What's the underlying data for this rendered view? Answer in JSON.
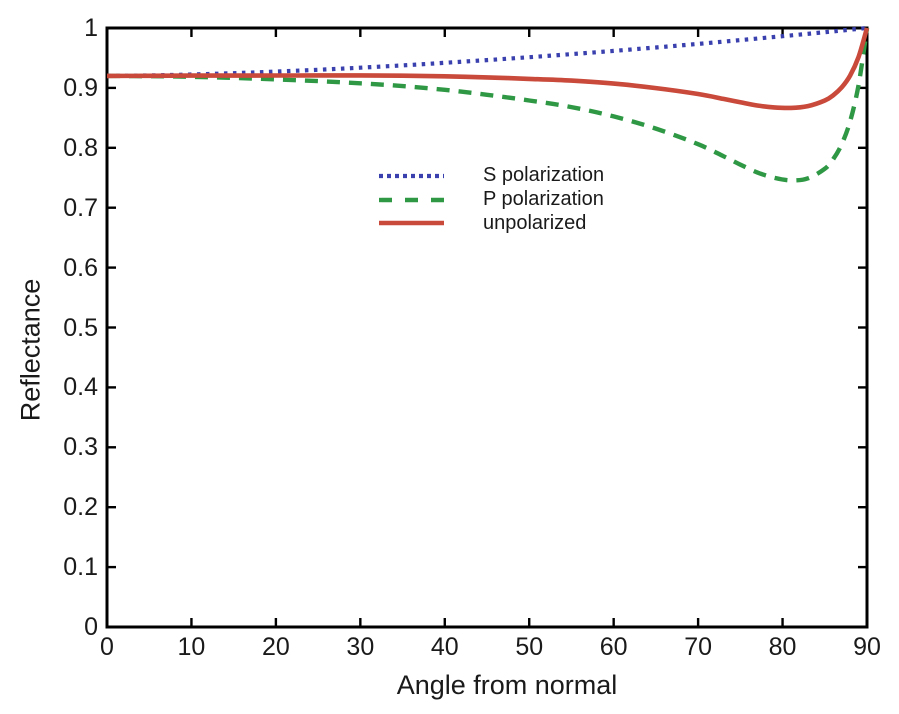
{
  "chart_data": {
    "type": "line",
    "title": "",
    "xlabel": "Angle from normal",
    "ylabel": "Reflectance",
    "xlim": [
      0,
      90
    ],
    "ylim": [
      0,
      1
    ],
    "grid": false,
    "background": "#ffffff",
    "axis_color": "#000000",
    "legend_position": "inside upper-center-left",
    "x_ticks": {
      "values": [
        0,
        10,
        20,
        30,
        40,
        50,
        60,
        70,
        80,
        90
      ],
      "labels": [
        "0",
        "10",
        "20",
        "30",
        "40",
        "50",
        "60",
        "70",
        "80",
        "90"
      ]
    },
    "y_ticks": {
      "values": [
        0,
        0.1,
        0.2,
        0.3,
        0.4,
        0.5,
        0.6,
        0.7,
        0.8,
        0.9,
        1
      ],
      "labels": [
        "0",
        "0.1",
        "0.2",
        "0.3",
        "0.4",
        "0.5",
        "0.6",
        "0.7",
        "0.8",
        "0.9",
        "1"
      ]
    },
    "series": [
      {
        "name": "S polarization",
        "style": "dotted",
        "color": "#3a41ae",
        "points": [
          [
            0,
            0.92
          ],
          [
            5,
            0.9208
          ],
          [
            10,
            0.9224
          ],
          [
            15,
            0.9246
          ],
          [
            20,
            0.9272
          ],
          [
            25,
            0.9303
          ],
          [
            30,
            0.9338
          ],
          [
            35,
            0.9376
          ],
          [
            40,
            0.9419
          ],
          [
            45,
            0.9464
          ],
          [
            50,
            0.9512
          ],
          [
            55,
            0.9564
          ],
          [
            60,
            0.9618
          ],
          [
            65,
            0.9675
          ],
          [
            70,
            0.9735
          ],
          [
            75,
            0.9798
          ],
          [
            80,
            0.9863
          ],
          [
            84,
            0.9916
          ],
          [
            87,
            0.9958
          ],
          [
            90,
            1.0
          ]
        ]
      },
      {
        "name": "P polarization",
        "style": "dashed",
        "color": "#2e9845",
        "points": [
          [
            0,
            0.92
          ],
          [
            5,
            0.9196
          ],
          [
            10,
            0.9185
          ],
          [
            15,
            0.9167
          ],
          [
            20,
            0.9142
          ],
          [
            25,
            0.9113
          ],
          [
            30,
            0.9077
          ],
          [
            35,
            0.903
          ],
          [
            40,
            0.8968
          ],
          [
            45,
            0.8885
          ],
          [
            50,
            0.879
          ],
          [
            55,
            0.868
          ],
          [
            60,
            0.8525
          ],
          [
            65,
            0.832
          ],
          [
            70,
            0.806
          ],
          [
            73,
            0.786
          ],
          [
            75,
            0.772
          ],
          [
            77,
            0.759
          ],
          [
            79,
            0.75
          ],
          [
            81,
            0.7455
          ],
          [
            83,
            0.749
          ],
          [
            85,
            0.765
          ],
          [
            86,
            0.781
          ],
          [
            87,
            0.806
          ],
          [
            88,
            0.844
          ],
          [
            89,
            0.905
          ],
          [
            90,
            1.0
          ]
        ]
      },
      {
        "name": "unpolarized",
        "style": "solid",
        "color": "#c9493a",
        "points": [
          [
            0,
            0.92
          ],
          [
            5,
            0.9202
          ],
          [
            10,
            0.9205
          ],
          [
            15,
            0.9206
          ],
          [
            20,
            0.9207
          ],
          [
            25,
            0.9208
          ],
          [
            30,
            0.9208
          ],
          [
            35,
            0.9203
          ],
          [
            40,
            0.9194
          ],
          [
            45,
            0.9175
          ],
          [
            50,
            0.9151
          ],
          [
            55,
            0.9122
          ],
          [
            60,
            0.9072
          ],
          [
            65,
            0.8997
          ],
          [
            70,
            0.8898
          ],
          [
            73,
            0.8816
          ],
          [
            75,
            0.8759
          ],
          [
            77,
            0.8707
          ],
          [
            79,
            0.8675
          ],
          [
            81,
            0.8666
          ],
          [
            83,
            0.8696
          ],
          [
            85,
            0.879
          ],
          [
            86,
            0.8877
          ],
          [
            87,
            0.9009
          ],
          [
            88,
            0.9206
          ],
          [
            89,
            0.9518
          ],
          [
            90,
            1.0
          ]
        ]
      }
    ]
  }
}
